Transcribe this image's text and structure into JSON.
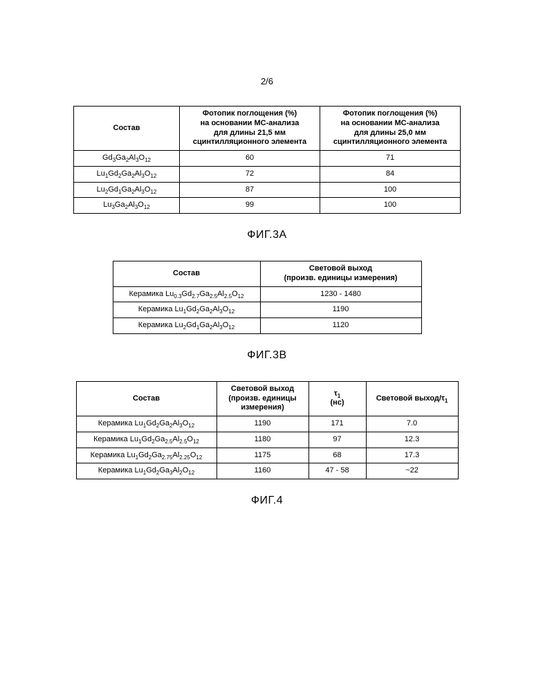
{
  "page_number": "2/6",
  "table3a": {
    "columns": [
      "Состав",
      "Фотопик поглощения (%)\nна основании МС-анализа\nдля длины 21,5 мм\nсцинтилляционного элемента",
      "Фотопик поглощения (%)\nна основании МС-анализа\nдля длины 25,0 мм\nсцинтилляционного элемента"
    ],
    "rows": [
      {
        "formula": "Gd_3Ga_2Al_3O_12",
        "c21": "60",
        "c25": "71"
      },
      {
        "formula": "Lu_1Gd_2Ga_2Al_3O_12",
        "c21": "72",
        "c25": "84"
      },
      {
        "formula": "Lu_2Gd_1Ga_2Al_3O_12",
        "c21": "87",
        "c25": "100"
      },
      {
        "formula": "Lu_3Ga_2Al_3O_12",
        "c21": "99",
        "c25": "100"
      }
    ],
    "caption": "ФИГ.3A"
  },
  "table3b": {
    "columns": [
      "Состав",
      "Световой выход\n(произв. единицы измерения)"
    ],
    "rows": [
      {
        "prefix": "Керамика ",
        "formula": "Lu_0.3Gd_2.7Ga_2.5Al_2.5O_12",
        "val": "1230 - 1480"
      },
      {
        "prefix": "Керамика ",
        "formula": "Lu_1Gd_2Ga_2Al_3O_12",
        "val": "1190"
      },
      {
        "prefix": "Керамика ",
        "formula": "Lu_2Gd_1Ga_2Al_3O_12",
        "val": "1120"
      }
    ],
    "caption": "ФИГ.3B"
  },
  "table4": {
    "columns": [
      "Состав",
      "Световой выход\n(произв. единицы\nизмерения)",
      "τ_1\n(нс)",
      "Световой выход/τ_1"
    ],
    "rows": [
      {
        "prefix": "Керамика ",
        "formula": "Lu_1Gd_2Ga_2Al_3O_12",
        "lv": "1190",
        "tau": "171",
        "ratio": "7.0"
      },
      {
        "prefix": "Керамика ",
        "formula": "Lu_1Gd_2Ga_2.5Al_2.5O_12",
        "lv": "1180",
        "tau": "97",
        "ratio": "12.3"
      },
      {
        "prefix": "Керамика ",
        "formula": "Lu_1Gd_2Ga_2.75Al_2.25O_12",
        "lv": "1175",
        "tau": "68",
        "ratio": "17.3"
      },
      {
        "prefix": "Керамика ",
        "formula": "Lu_1Gd_2Ga_3Al_2O_12",
        "lv": "1160",
        "tau": "47 - 58",
        "ratio": "~22"
      }
    ],
    "caption": "ФИГ.4"
  },
  "colors": {
    "border": "#000000",
    "background": "#ffffff",
    "text": "#000000"
  },
  "fonts": {
    "body_size_pt": 11,
    "caption_size_pt": 16,
    "page_num_size_pt": 13,
    "family": "Arial"
  }
}
